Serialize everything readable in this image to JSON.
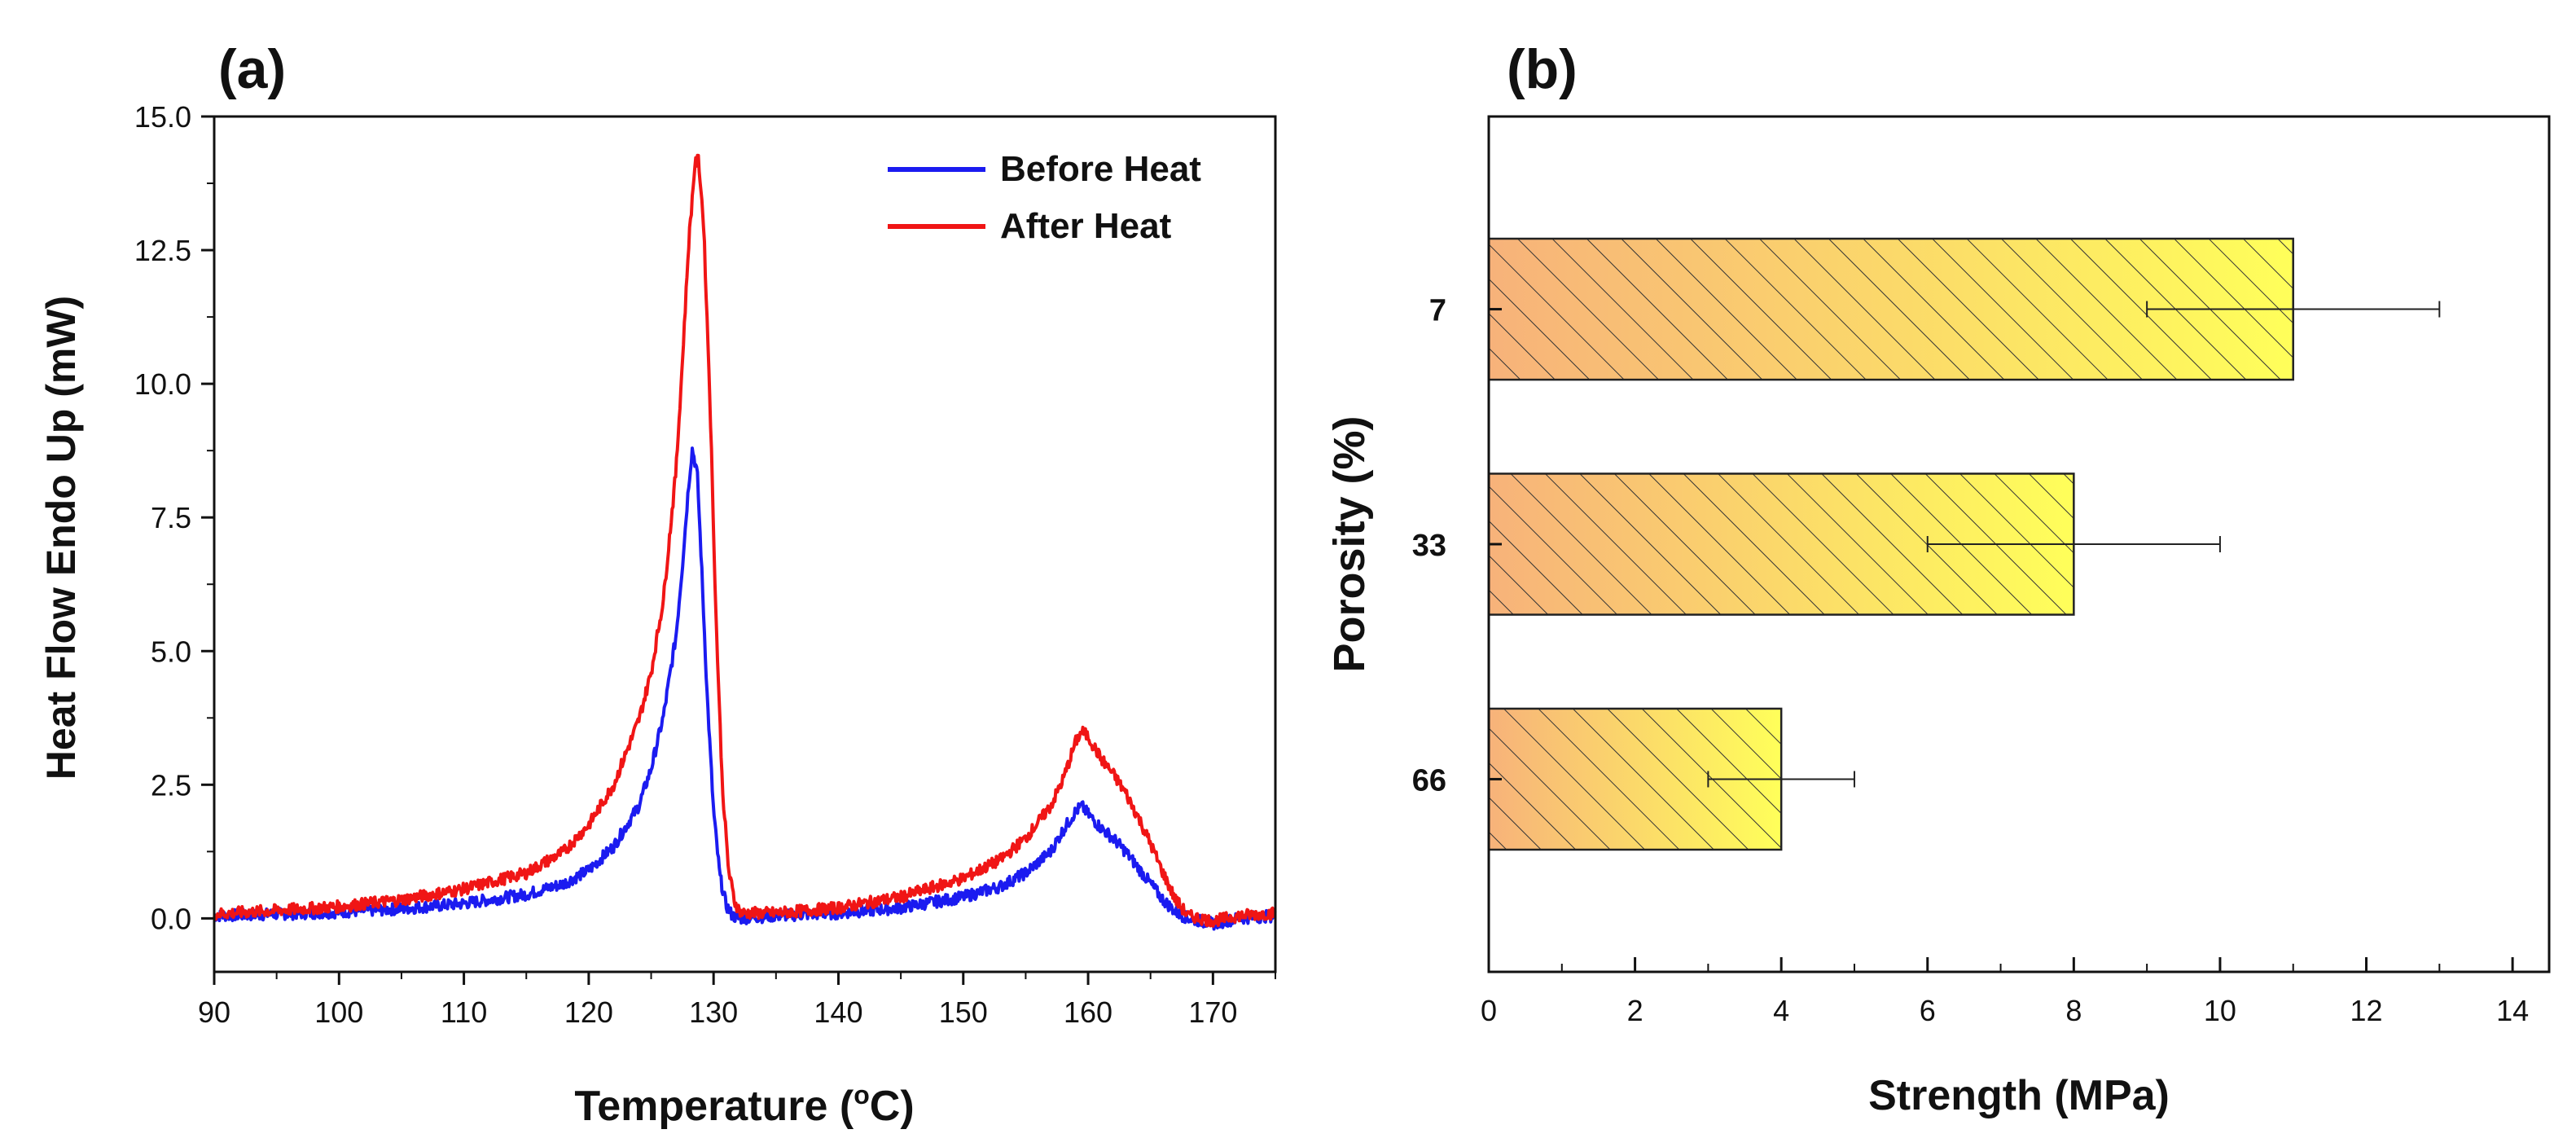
{
  "colors": {
    "before": "#1b1bf0",
    "after": "#f01515",
    "bar_left": "#f7b27a",
    "bar_right": "#ffff5a",
    "axis": "#111111"
  },
  "chart_data": [
    {
      "type": "line",
      "panel_label": "(a)",
      "xlabel_main": "Temperature (",
      "xlabel_sup": "o",
      "xlabel_end": "C)",
      "ylabel": "Heat Flow Endo Up (mW)",
      "xlim": [
        90,
        175
      ],
      "ylim": [
        -1,
        15
      ],
      "xticks": [
        90,
        100,
        110,
        120,
        130,
        140,
        150,
        160,
        170
      ],
      "xtick_labels": [
        "90",
        "100",
        "110",
        "120",
        "130",
        "140",
        "150",
        "160",
        "170"
      ],
      "yticks": [
        0,
        2.5,
        5,
        7.5,
        10,
        12.5,
        15
      ],
      "ytick_labels": [
        "0.0",
        "2.5",
        "5.0",
        "7.5",
        "10.0",
        "12.5",
        "15.0"
      ],
      "legend_position": "top-right",
      "series": [
        {
          "name": "Before Heat",
          "color_key": "before",
          "x": [
            90,
            95,
            100,
            105,
            110,
            115,
            118,
            120,
            122,
            124,
            125,
            126,
            127,
            127.5,
            128,
            128.3,
            128.7,
            129,
            129.5,
            130,
            130.5,
            131,
            131.5,
            132,
            135,
            140,
            145,
            150,
            153,
            155,
            157,
            158,
            159,
            159.5,
            160,
            161,
            162,
            163,
            164,
            165,
            166,
            167,
            168,
            170,
            172,
            175
          ],
          "y": [
            0.05,
            0.08,
            0.12,
            0.18,
            0.28,
            0.45,
            0.65,
            0.9,
            1.35,
            2.1,
            2.8,
            3.8,
            5.3,
            6.6,
            8.1,
            8.8,
            8.3,
            6.8,
            4.1,
            2.0,
            0.8,
            0.25,
            0.05,
            0.0,
            0.05,
            0.1,
            0.2,
            0.4,
            0.6,
            0.85,
            1.25,
            1.65,
            2.0,
            2.1,
            1.95,
            1.7,
            1.5,
            1.25,
            0.95,
            0.65,
            0.35,
            0.12,
            0.0,
            -0.1,
            0.0,
            0.05
          ]
        },
        {
          "name": "After Heat",
          "color_key": "after",
          "x": [
            90,
            95,
            100,
            105,
            110,
            115,
            118,
            120,
            122,
            124,
            125,
            126,
            127,
            127.5,
            128,
            128.5,
            128.8,
            129.2,
            129.7,
            130.2,
            130.7,
            131.2,
            131.7,
            132.2,
            135,
            140,
            145,
            150,
            153,
            155,
            157,
            158,
            159,
            159.5,
            160,
            161,
            162,
            163,
            164,
            165,
            166,
            167,
            168,
            170,
            172,
            175
          ],
          "y": [
            0.08,
            0.15,
            0.22,
            0.35,
            0.55,
            0.85,
            1.25,
            1.75,
            2.5,
            3.7,
            4.6,
            6.0,
            8.4,
            10.4,
            12.6,
            14.1,
            14.2,
            13.0,
            9.8,
            5.6,
            2.5,
            0.9,
            0.3,
            0.1,
            0.1,
            0.2,
            0.4,
            0.75,
            1.1,
            1.5,
            2.1,
            2.6,
            3.3,
            3.5,
            3.4,
            3.0,
            2.7,
            2.35,
            1.9,
            1.4,
            0.85,
            0.35,
            0.05,
            -0.05,
            0.05,
            0.1
          ]
        }
      ]
    },
    {
      "type": "bar",
      "orientation": "horizontal",
      "panel_label": "(b)",
      "xlabel": "Strength (MPa)",
      "ylabel": "Porosity (%)",
      "xlim": [
        0,
        14.5
      ],
      "xticks": [
        0,
        2,
        4,
        6,
        8,
        10,
        12,
        14
      ],
      "xtick_labels": [
        "0",
        "2",
        "4",
        "6",
        "8",
        "10",
        "12",
        "14"
      ],
      "categories": [
        "7",
        "33",
        "66"
      ],
      "values": [
        11,
        8,
        4
      ],
      "errors": [
        2,
        2,
        1
      ],
      "bar_fill": "hatched-gradient"
    }
  ]
}
